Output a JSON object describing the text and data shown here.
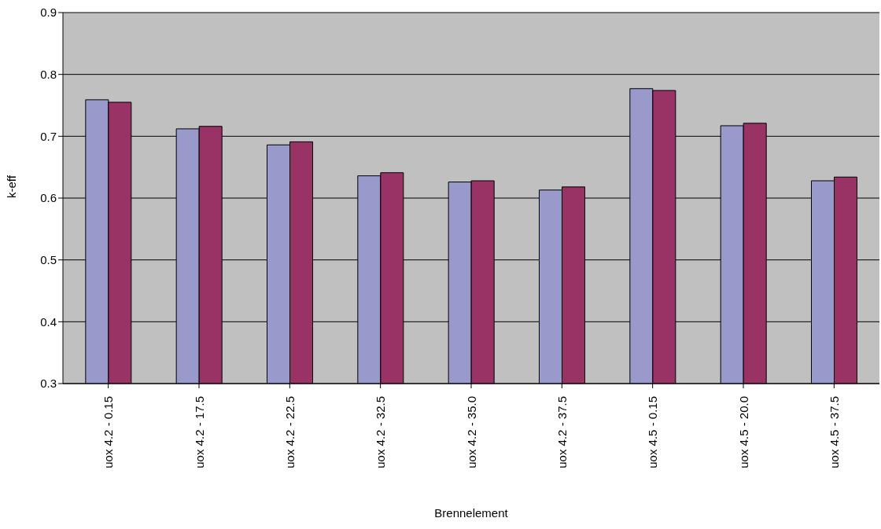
{
  "chart_data": {
    "type": "bar",
    "xlabel": "Brennelement",
    "ylabel": "k-eff",
    "categories": [
      "uox 4.2 - 0.15",
      "uox 4.2 - 17.5",
      "uox 4.2 - 22.5",
      "uox 4.2 - 32.5",
      "uox 4.2 - 35.0",
      "uox 4.2 - 37.5",
      "uox 4.5 - 0.15",
      "uox 4.5 - 20.0",
      "uox 4.5 - 37.5"
    ],
    "series": [
      {
        "color": "#9999cc",
        "values": [
          0.759,
          0.712,
          0.686,
          0.636,
          0.626,
          0.613,
          0.777,
          0.717,
          0.628
        ]
      },
      {
        "color": "#993366",
        "values": [
          0.755,
          0.716,
          0.691,
          0.641,
          0.628,
          0.618,
          0.774,
          0.721,
          0.634
        ]
      }
    ],
    "ylim": [
      0.3,
      0.9
    ],
    "yticks": [
      0.3,
      0.4,
      0.5,
      0.6,
      0.7,
      0.8,
      0.9
    ],
    "grid": "y"
  }
}
